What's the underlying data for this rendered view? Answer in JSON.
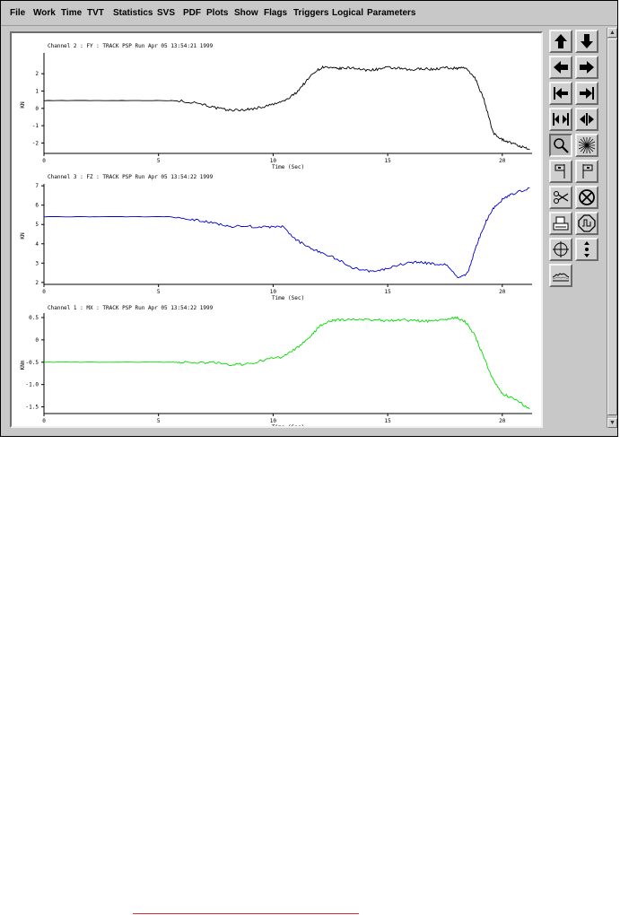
{
  "menu": [
    {
      "label": "File",
      "name": "menu-file"
    },
    {
      "label": "Work",
      "name": "menu-work"
    },
    {
      "label": "Time",
      "name": "menu-time"
    },
    {
      "label": "TVT",
      "name": "menu-tvt"
    },
    {
      "label": "Statistics",
      "name": "menu-statistics"
    },
    {
      "label": "SVS",
      "name": "menu-svs"
    },
    {
      "label": "PDF",
      "name": "menu-pdf"
    },
    {
      "label": "Plots",
      "name": "menu-plots"
    },
    {
      "label": "Show",
      "name": "menu-show"
    },
    {
      "label": "Flags",
      "name": "menu-flags"
    },
    {
      "label": "Triggers",
      "name": "menu-triggers"
    },
    {
      "label": "Logical",
      "name": "menu-logical"
    },
    {
      "label": "Parameters",
      "name": "menu-parameters"
    }
  ],
  "toolbar": [
    {
      "name": "arrow-up-icon"
    },
    {
      "name": "arrow-down-icon"
    },
    {
      "name": "arrow-left-icon"
    },
    {
      "name": "arrow-right-icon"
    },
    {
      "name": "jump-start-icon"
    },
    {
      "name": "jump-end-icon"
    },
    {
      "name": "expand-horizontal-icon"
    },
    {
      "name": "compress-horizontal-icon"
    },
    {
      "name": "zoom-icon",
      "pressed": true
    },
    {
      "name": "starburst-icon"
    },
    {
      "name": "flag-left-icon"
    },
    {
      "name": "flag-right-icon"
    },
    {
      "name": "scissors-icon"
    },
    {
      "name": "cancel-icon"
    },
    {
      "name": "printer-icon"
    },
    {
      "name": "stop-sign-icon"
    },
    {
      "name": "crosshair-icon"
    },
    {
      "name": "vertical-expand-icon"
    },
    {
      "name": "waveform-icon"
    }
  ],
  "colors": {
    "channel2": "#000000",
    "channel3": "#0000cc",
    "channel1": "#00dd00"
  },
  "chart_data": [
    {
      "type": "line",
      "title": "Channel 2 : FY : TRACK PSP Run Apr 05 13:54:21 1999",
      "xlabel": "Time (Sec)",
      "ylabel": "KN",
      "xlim": [
        0,
        21.3
      ],
      "ylim": [
        -2.6,
        3.2
      ],
      "xticks": [
        "0",
        "5",
        "10",
        "15",
        "20"
      ],
      "yticks": [
        "2",
        "1",
        "0",
        "-1",
        "-2"
      ],
      "ytick_values": [
        2,
        1,
        0,
        -1,
        -2
      ],
      "color": "#000000",
      "x": [
        0,
        2,
        4,
        5.5,
        6,
        6.8,
        7.4,
        8,
        8.5,
        9,
        9.6,
        10.2,
        10.6,
        11,
        11.4,
        11.8,
        12.2,
        12.6,
        13,
        13.5,
        14,
        14.5,
        15,
        15.5,
        16,
        16.5,
        17,
        17.5,
        18,
        18.3,
        18.8,
        19.2,
        19.6,
        20,
        20.4,
        20.8,
        21.2
      ],
      "y": [
        0.45,
        0.45,
        0.45,
        0.45,
        0.42,
        0.3,
        0.05,
        -0.1,
        -0.1,
        -0.05,
        0.1,
        0.3,
        0.5,
        0.9,
        1.5,
        2.1,
        2.4,
        2.3,
        2.3,
        2.35,
        2.2,
        2.25,
        2.35,
        2.3,
        2.2,
        2.3,
        2.25,
        2.35,
        2.3,
        2.4,
        1.8,
        0.5,
        -1.4,
        -1.8,
        -2.0,
        -2.2,
        -2.4
      ]
    },
    {
      "type": "line",
      "title": "Channel 3 : FZ : TRACK PSP Run Apr 05 13:54:22 1999",
      "xlabel": "Time (Sec)",
      "ylabel": "KN",
      "xlim": [
        0,
        21.3
      ],
      "ylim": [
        1.9,
        7.1
      ],
      "xticks": [
        "0",
        "5",
        "10",
        "15",
        "20"
      ],
      "yticks": [
        "7",
        "6",
        "5",
        "4",
        "3",
        "2"
      ],
      "ytick_values": [
        7,
        6,
        5,
        4,
        3,
        2
      ],
      "color": "#0000cc",
      "x": [
        0,
        2,
        4,
        5.5,
        6,
        6.8,
        7.5,
        8.2,
        9,
        9.8,
        10.4,
        11,
        11.6,
        12.2,
        12.8,
        13.4,
        14,
        14.6,
        15.2,
        15.8,
        16.4,
        17,
        17.6,
        18.1,
        18.5,
        18.9,
        19.3,
        19.6,
        20,
        20.5,
        21.2
      ],
      "y": [
        5.4,
        5.4,
        5.4,
        5.4,
        5.3,
        5.2,
        5.05,
        4.9,
        4.9,
        4.85,
        4.9,
        4.2,
        3.8,
        3.5,
        3.2,
        2.8,
        2.6,
        2.6,
        2.8,
        3.0,
        3.05,
        2.95,
        2.9,
        2.2,
        2.5,
        4.0,
        5.2,
        5.8,
        6.3,
        6.6,
        6.9
      ]
    },
    {
      "type": "line",
      "title": "Channel 1 : MX : TRACK PSP Run Apr 05 13:54:22 1999",
      "xlabel": "Time (Sec)",
      "ylabel": "KNm",
      "xlim": [
        0,
        21.3
      ],
      "ylim": [
        -1.65,
        0.6
      ],
      "xticks": [
        "0",
        "5",
        "10",
        "15",
        "20"
      ],
      "yticks": [
        "0.5",
        "0",
        "-0.5",
        "-1.0",
        "-1.5"
      ],
      "ytick_values": [
        0.5,
        0,
        -0.5,
        -1.0,
        -1.5
      ],
      "color": "#00dd00",
      "x": [
        0,
        2,
        4,
        5.5,
        6,
        6.8,
        7.4,
        8,
        8.8,
        9.6,
        10.4,
        11,
        11.6,
        12,
        12.4,
        12.8,
        13.4,
        14,
        14.6,
        15,
        15.6,
        16.2,
        16.8,
        17.4,
        18,
        18.4,
        18.8,
        19.2,
        19.6,
        20,
        20.6,
        21.2
      ],
      "y": [
        -0.5,
        -0.5,
        -0.5,
        -0.5,
        -0.5,
        -0.52,
        -0.5,
        -0.55,
        -0.55,
        -0.45,
        -0.38,
        -0.2,
        0.05,
        0.3,
        0.4,
        0.45,
        0.45,
        0.45,
        0.45,
        0.42,
        0.45,
        0.43,
        0.42,
        0.45,
        0.5,
        0.4,
        0.1,
        -0.4,
        -0.9,
        -1.2,
        -1.35,
        -1.55
      ]
    }
  ]
}
